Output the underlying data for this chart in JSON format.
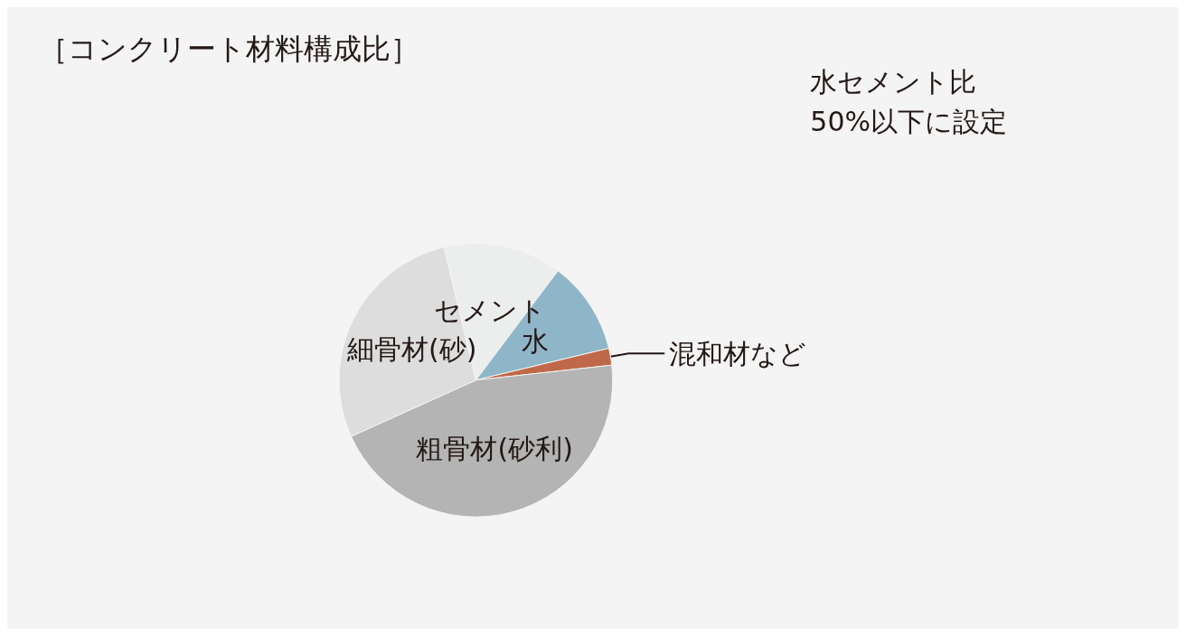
{
  "chart_data": {
    "type": "pie",
    "title": "［コンクリート材料構成比］",
    "categories": [
      "セメント",
      "水",
      "混和材など",
      "粗骨材(砂利)",
      "細骨材(砂)"
    ],
    "values": [
      14,
      11,
      2,
      45,
      28
    ],
    "colors": [
      "#eceeed",
      "#8fb5c9",
      "#c0694a",
      "#b3b4b3",
      "#dcdddc"
    ],
    "annotations": [
      "水セメント比\n50%以下に設定"
    ],
    "legend": false
  }
}
